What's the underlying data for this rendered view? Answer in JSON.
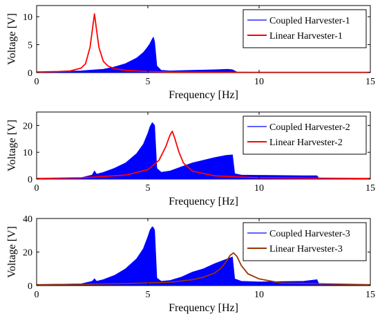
{
  "chart_data": [
    {
      "type": "line",
      "xlabel": "Frequency [Hz]",
      "ylabel": "Voltage [V]",
      "xlim": [
        0,
        15
      ],
      "ylim": [
        0,
        12
      ],
      "xticks": [
        "0",
        "5",
        "10",
        "15"
      ],
      "yticks": [
        "0",
        "5",
        "10"
      ],
      "grid": false,
      "legend_position": "top-right",
      "series": [
        {
          "name": "Coupled Harvester-1",
          "color": "#0000ff",
          "style": "filled-envelope",
          "x": [
            0,
            1,
            2,
            2.5,
            3,
            3.5,
            4,
            4.5,
            4.8,
            5.0,
            5.1,
            5.2,
            5.25,
            5.3,
            5.4,
            5.6,
            6,
            7,
            8,
            8.6,
            8.8,
            9,
            10,
            15
          ],
          "y": [
            0.1,
            0.2,
            0.3,
            0.45,
            0.6,
            1.0,
            1.6,
            2.6,
            3.6,
            4.6,
            5.2,
            6.0,
            6.3,
            5.5,
            1.2,
            0.4,
            0.3,
            0.4,
            0.5,
            0.6,
            0.5,
            0.1,
            0.05,
            0.05
          ]
        },
        {
          "name": "Linear Harvester-1",
          "color": "#ff0000",
          "style": "line",
          "x": [
            0,
            1,
            1.5,
            2,
            2.2,
            2.4,
            2.5,
            2.6,
            2.7,
            2.8,
            3.0,
            3.2,
            3.5,
            4,
            5,
            6,
            8,
            10,
            15
          ],
          "y": [
            0.1,
            0.2,
            0.3,
            0.8,
            1.6,
            4.5,
            7.5,
            10.5,
            7.5,
            4.5,
            2.0,
            1.2,
            0.7,
            0.4,
            0.2,
            0.1,
            0.05,
            0.05,
            0.05
          ]
        }
      ]
    },
    {
      "type": "line",
      "xlabel": "Frequency [Hz]",
      "ylabel": "Voltage [V]",
      "xlim": [
        0,
        15
      ],
      "ylim": [
        0,
        25
      ],
      "xticks": [
        "0",
        "5",
        "10",
        "15"
      ],
      "yticks": [
        "0",
        "10",
        "20"
      ],
      "grid": false,
      "legend_position": "top-right",
      "series": [
        {
          "name": "Coupled Harvester-2",
          "color": "#0000ff",
          "style": "filled-envelope",
          "x": [
            0,
            1,
            2,
            2.5,
            2.6,
            2.7,
            3,
            3.5,
            4,
            4.5,
            4.8,
            5.0,
            5.1,
            5.2,
            5.3,
            5.4,
            5.6,
            6,
            6.5,
            7,
            7.5,
            8,
            8.5,
            8.8,
            8.9,
            9.2,
            10,
            12,
            12.6,
            12.7,
            15
          ],
          "y": [
            0.2,
            0.3,
            0.5,
            1.5,
            3.0,
            1.8,
            2.5,
            4.0,
            6.0,
            9.5,
            13.0,
            17.0,
            19.5,
            21.0,
            20.0,
            4.0,
            2.5,
            3.0,
            4.5,
            6.0,
            7.0,
            8.0,
            8.8,
            9.0,
            2.0,
            1.5,
            1.4,
            1.2,
            1.2,
            0.2,
            0.1
          ]
        },
        {
          "name": "Linear Harvester-2",
          "color": "#ff0000",
          "style": "line",
          "x": [
            0,
            2,
            4,
            5,
            5.5,
            5.8,
            6.0,
            6.1,
            6.2,
            6.4,
            6.6,
            7,
            8,
            10,
            15
          ],
          "y": [
            0.2,
            0.5,
            1.5,
            3.5,
            7.0,
            12.0,
            16.5,
            17.8,
            15.5,
            10.0,
            6.0,
            3.0,
            1.2,
            0.5,
            0.2
          ]
        }
      ]
    },
    {
      "type": "line",
      "xlabel": "Frequency [Hz]",
      "ylabel": "Voltage [V]",
      "xlim": [
        0,
        15
      ],
      "ylim": [
        0,
        40
      ],
      "xticks": [
        "0",
        "5",
        "10",
        "15"
      ],
      "yticks": [
        "0",
        "20",
        "40"
      ],
      "grid": false,
      "legend_position": "top-right",
      "series": [
        {
          "name": "Coupled Harvester-3",
          "color": "#0000ff",
          "style": "filled-envelope",
          "x": [
            0,
            1,
            2,
            2.5,
            2.6,
            2.7,
            3,
            3.5,
            4,
            4.5,
            4.8,
            5.0,
            5.1,
            5.2,
            5.25,
            5.3,
            5.4,
            5.6,
            6,
            6.5,
            7,
            7.5,
            8,
            8.5,
            8.8,
            8.9,
            9.2,
            10,
            12,
            12.6,
            12.7,
            15
          ],
          "y": [
            0.5,
            0.8,
            1.0,
            2.5,
            4.0,
            2.5,
            3.5,
            6.0,
            10.0,
            16.0,
            22.0,
            29.0,
            33.0,
            35.0,
            34.5,
            33.0,
            4.5,
            2.5,
            3.0,
            5.0,
            8.0,
            10.0,
            13.0,
            15.5,
            17.0,
            4.0,
            2.5,
            2.2,
            2.5,
            3.5,
            0.5,
            0.3
          ]
        },
        {
          "name": "Linear Harvester-3",
          "color": "#993300",
          "style": "line",
          "x": [
            0,
            2,
            4,
            6,
            7,
            7.5,
            8,
            8.3,
            8.5,
            8.7,
            8.85,
            9.0,
            9.2,
            9.5,
            10,
            11,
            15
          ],
          "y": [
            0.5,
            0.8,
            1.2,
            2.0,
            3.5,
            5.0,
            7.5,
            10.5,
            14.0,
            18.0,
            19.5,
            17.5,
            12.0,
            7.0,
            4.0,
            1.5,
            0.5
          ]
        }
      ]
    }
  ]
}
